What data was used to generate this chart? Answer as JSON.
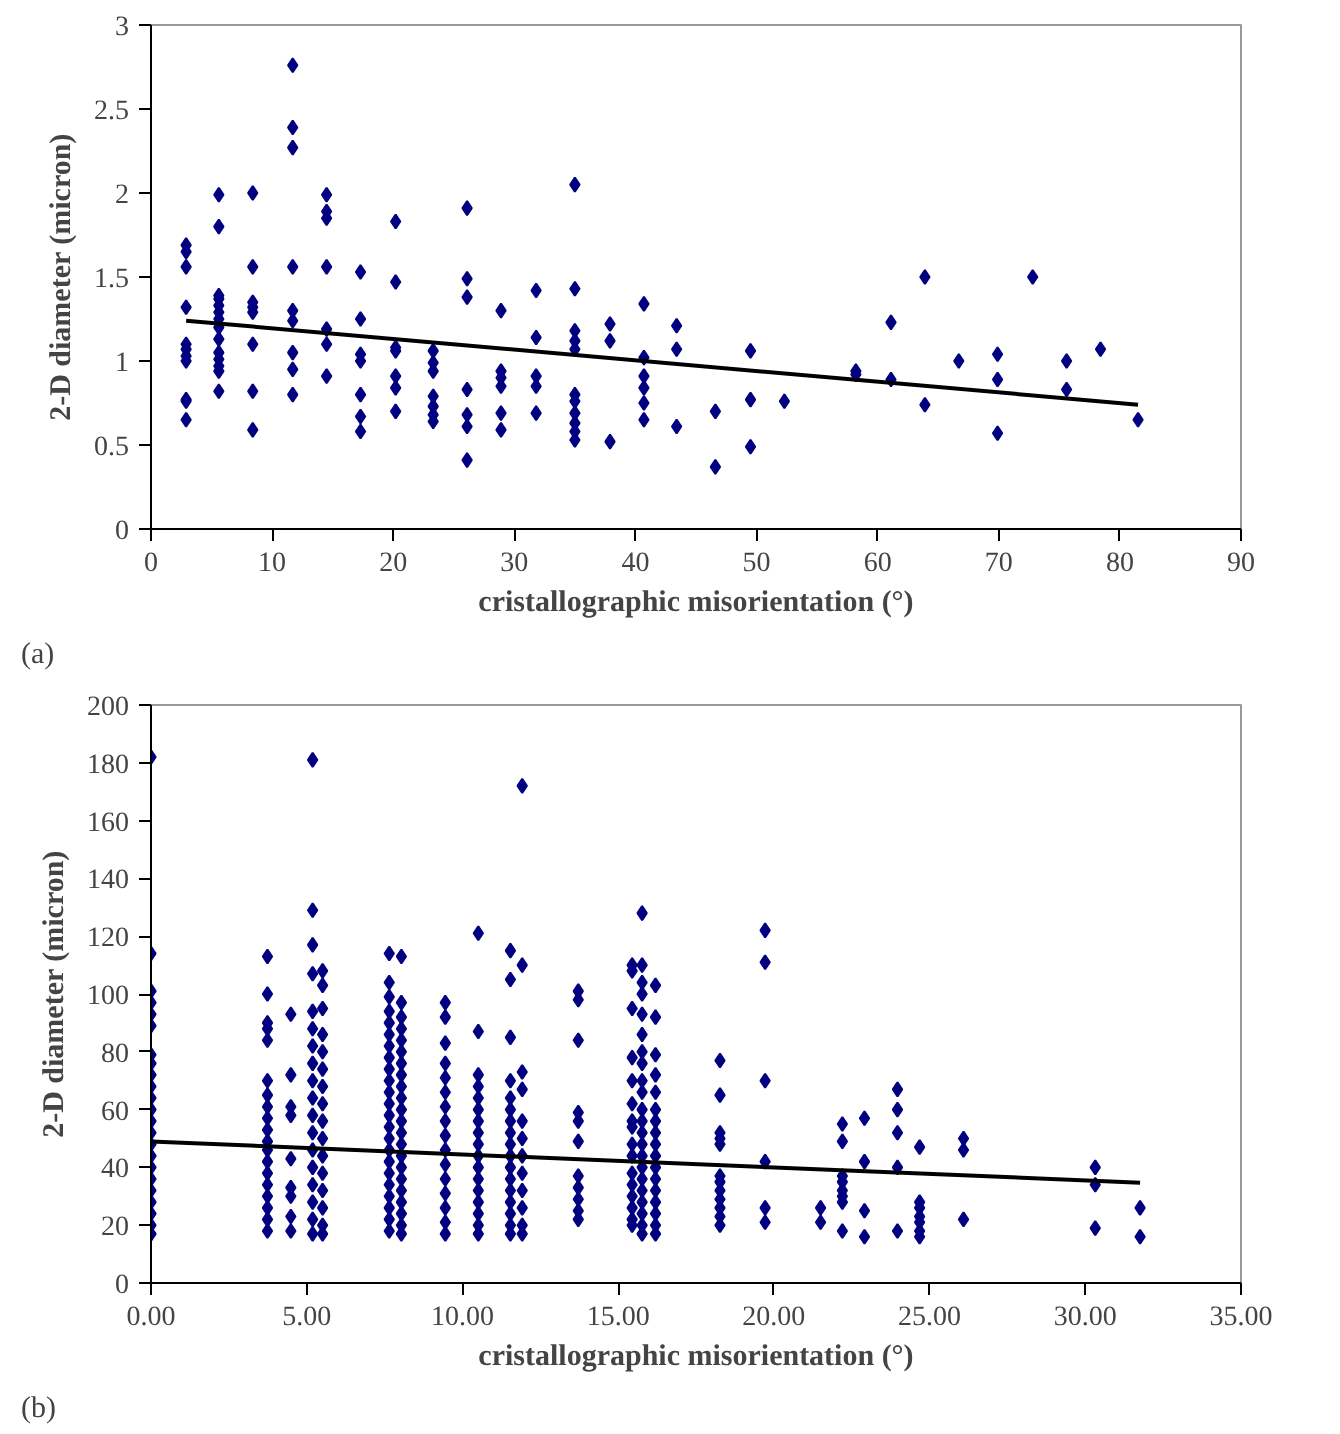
{
  "chart_data": [
    {
      "type": "scatter",
      "xlabel": "cristallographic misorientation (°)",
      "ylabel": "2-D diameter (micron)",
      "annotations": [
        "(a)"
      ],
      "xlim": [
        0,
        90
      ],
      "xticks": [
        0,
        10,
        20,
        30,
        40,
        50,
        60,
        70,
        80,
        90
      ],
      "ylim": [
        0,
        3
      ],
      "yticks": [
        0,
        0.5,
        1,
        1.5,
        2,
        2.5,
        3
      ],
      "series": [
        {
          "marker": "diamond",
          "color": "#000080",
          "x": [
            2.9,
            2.9,
            2.9,
            2.9,
            2.9,
            2.9,
            2.9,
            2.9,
            2.9,
            2.9,
            2.9,
            5.6,
            5.6,
            5.6,
            5.6,
            5.6,
            5.6,
            5.6,
            5.6,
            5.6,
            5.6,
            5.6,
            5.6,
            5.6,
            5.6,
            8.4,
            8.4,
            8.4,
            8.4,
            8.4,
            8.4,
            8.4,
            8.4,
            11.7,
            11.7,
            11.7,
            11.7,
            11.7,
            11.7,
            11.7,
            11.7,
            11.7,
            14.5,
            14.5,
            14.5,
            14.5,
            14.5,
            14.5,
            14.5,
            17.3,
            17.3,
            17.3,
            17.3,
            17.3,
            17.3,
            17.3,
            20.2,
            20.2,
            20.2,
            20.2,
            20.2,
            20.2,
            20.2,
            23.3,
            23.3,
            23.3,
            23.3,
            23.3,
            23.3,
            23.3,
            26.1,
            26.1,
            26.1,
            26.1,
            26.1,
            26.1,
            26.1,
            28.9,
            28.9,
            28.9,
            28.9,
            28.9,
            28.9,
            31.8,
            31.8,
            31.8,
            31.8,
            31.8,
            35,
            35,
            35,
            35,
            35,
            35,
            35,
            35,
            35,
            35,
            35,
            37.9,
            37.9,
            37.9,
            40.7,
            40.7,
            40.7,
            40.7,
            40.7,
            40.7,
            43.4,
            43.4,
            43.4,
            46.6,
            46.6,
            49.5,
            49.5,
            49.5,
            52.3,
            58.2,
            58.2,
            61.1,
            61.1,
            63.9,
            63.9,
            66.7,
            69.9,
            69.9,
            69.9,
            72.8,
            75.6,
            75.6,
            78.4,
            81.5
          ],
          "values": [
            1.69,
            1.65,
            1.56,
            1.32,
            1.1,
            1.07,
            1.03,
            1.0,
            0.77,
            0.76,
            0.65,
            1.99,
            1.8,
            1.39,
            1.37,
            1.33,
            1.29,
            1.25,
            1.2,
            1.13,
            1.05,
            1.01,
            0.97,
            0.94,
            0.82,
            2.0,
            1.56,
            1.35,
            1.32,
            1.29,
            1.1,
            0.82,
            0.59,
            2.76,
            2.39,
            2.27,
            1.56,
            1.3,
            1.24,
            1.05,
            0.95,
            0.8,
            1.99,
            1.89,
            1.85,
            1.56,
            1.19,
            1.1,
            0.91,
            1.53,
            1.25,
            1.04,
            1.0,
            0.8,
            0.67,
            0.58,
            1.83,
            1.47,
            1.08,
            1.06,
            0.91,
            0.84,
            0.7,
            1.06,
            0.99,
            0.94,
            0.79,
            0.73,
            0.68,
            0.64,
            1.91,
            1.49,
            1.38,
            0.83,
            0.68,
            0.61,
            0.41,
            1.3,
            0.94,
            0.9,
            0.85,
            0.69,
            0.59,
            1.42,
            1.14,
            0.91,
            0.85,
            0.69,
            2.05,
            1.43,
            1.18,
            1.12,
            1.07,
            0.8,
            0.76,
            0.69,
            0.63,
            0.58,
            0.53,
            1.22,
            1.12,
            0.52,
            1.34,
            1.02,
            0.91,
            0.84,
            0.75,
            0.65,
            1.21,
            1.07,
            0.61,
            0.7,
            0.37,
            1.06,
            0.77,
            0.49,
            0.76,
            0.94,
            0.92,
            1.23,
            0.89,
            1.5,
            0.74,
            1.0,
            1.04,
            0.89,
            0.57,
            1.5,
            1.0,
            0.83,
            1.07,
            0.65
          ]
        },
        {
          "type": "line",
          "color": "#000000",
          "line_style": "solid",
          "x": [
            2.9,
            81.5
          ],
          "values": [
            1.24,
            0.74
          ]
        }
      ]
    },
    {
      "type": "scatter",
      "xlabel": "cristallographic misorientation (°)",
      "ylabel": "2-D diameter (micron)",
      "annotations": [
        "(b)"
      ],
      "xlim": [
        0,
        35
      ],
      "xticks": [
        {
          "value": 0,
          "label": "0.00"
        },
        {
          "value": 5,
          "label": "5.00"
        },
        {
          "value": 10,
          "label": "10.00"
        },
        {
          "value": 15,
          "label": "15.00"
        },
        {
          "value": 20,
          "label": "20.00"
        },
        {
          "value": 25,
          "label": "25.00"
        },
        {
          "value": 30,
          "label": "30.00"
        },
        {
          "value": 35,
          "label": "35.00"
        }
      ],
      "ylim": [
        0,
        200
      ],
      "yticks": [
        0,
        20,
        40,
        60,
        80,
        100,
        120,
        140,
        160,
        180,
        200
      ],
      "series": [
        {
          "marker": "diamond",
          "color": "#000080",
          "x": [
            0,
            0,
            0,
            0,
            0,
            0,
            0,
            0,
            0,
            0,
            0,
            0,
            0,
            0,
            0,
            0,
            0,
            0,
            0,
            0,
            0,
            0,
            0,
            3.74,
            3.74,
            3.74,
            3.74,
            3.74,
            3.74,
            3.74,
            3.74,
            3.74,
            3.74,
            3.74,
            3.74,
            3.74,
            3.74,
            3.74,
            3.74,
            3.74,
            3.74,
            3.74,
            4.49,
            4.49,
            4.49,
            4.49,
            4.49,
            4.49,
            4.49,
            4.49,
            4.49,
            5.19,
            5.19,
            5.19,
            5.19,
            5.19,
            5.19,
            5.19,
            5.19,
            5.19,
            5.19,
            5.19,
            5.19,
            5.19,
            5.19,
            5.19,
            5.19,
            5.19,
            5.19,
            5.51,
            5.51,
            5.51,
            5.51,
            5.51,
            5.51,
            5.51,
            5.51,
            5.51,
            5.51,
            5.51,
            5.51,
            5.51,
            5.51,
            5.51,
            5.51,
            7.65,
            7.65,
            7.65,
            7.65,
            7.65,
            7.65,
            7.65,
            7.65,
            7.65,
            7.65,
            7.65,
            7.65,
            7.65,
            7.65,
            7.65,
            7.65,
            7.65,
            7.65,
            7.65,
            7.65,
            7.65,
            7.65,
            7.65,
            8.04,
            8.04,
            8.04,
            8.04,
            8.04,
            8.04,
            8.04,
            8.04,
            8.04,
            8.04,
            8.04,
            8.04,
            8.04,
            8.04,
            8.04,
            8.04,
            8.04,
            8.04,
            8.04,
            8.04,
            8.04,
            8.04,
            9.45,
            9.45,
            9.45,
            9.45,
            9.45,
            9.45,
            9.45,
            9.45,
            9.45,
            9.45,
            9.45,
            9.45,
            9.45,
            9.45,
            9.45,
            9.45,
            10.51,
            10.51,
            10.51,
            10.51,
            10.51,
            10.51,
            10.51,
            10.51,
            10.51,
            10.51,
            10.51,
            10.51,
            10.51,
            10.51,
            10.51,
            10.51,
            10.51,
            11.54,
            11.54,
            11.54,
            11.54,
            11.54,
            11.54,
            11.54,
            11.54,
            11.54,
            11.54,
            11.54,
            11.54,
            11.54,
            11.54,
            11.54,
            11.54,
            11.54,
            11.92,
            11.92,
            11.92,
            11.92,
            11.92,
            11.92,
            11.92,
            11.92,
            11.92,
            11.92,
            11.92,
            11.92,
            13.72,
            13.72,
            13.72,
            13.72,
            13.72,
            13.72,
            13.72,
            13.72,
            13.72,
            13.72,
            13.72,
            15.45,
            15.45,
            15.45,
            15.45,
            15.45,
            15.45,
            15.45,
            15.45,
            15.45,
            15.45,
            15.45,
            15.45,
            15.45,
            15.45,
            15.45,
            15.45,
            15.77,
            15.77,
            15.77,
            15.77,
            15.77,
            15.77,
            15.77,
            15.77,
            15.77,
            15.77,
            15.77,
            15.77,
            15.77,
            15.77,
            15.77,
            15.77,
            15.77,
            15.77,
            15.77,
            15.77,
            15.77,
            15.77,
            16.2,
            16.2,
            16.2,
            16.2,
            16.2,
            16.2,
            16.2,
            16.2,
            16.2,
            16.2,
            16.2,
            16.2,
            16.2,
            16.2,
            16.2,
            16.2,
            16.2,
            18.27,
            18.27,
            18.27,
            18.27,
            18.27,
            18.27,
            18.27,
            18.27,
            18.27,
            18.27,
            18.27,
            18.27,
            19.72,
            19.72,
            19.72,
            19.72,
            19.72,
            19.72,
            21.5,
            21.5,
            22.2,
            22.2,
            22.2,
            22.2,
            22.2,
            22.2,
            22.2,
            22.2,
            22.91,
            22.91,
            22.91,
            22.91,
            23.97,
            23.97,
            23.97,
            23.97,
            23.97,
            24.68,
            24.68,
            24.68,
            24.68,
            24.68,
            24.68,
            24.68,
            26.09,
            26.09,
            26.09,
            30.32,
            30.32,
            30.32,
            31.76,
            31.76
          ],
          "values": [
            182,
            114,
            101,
            97,
            93,
            89,
            79,
            76,
            72,
            68,
            64,
            60,
            56,
            52,
            48,
            44,
            40,
            36,
            32,
            28,
            24,
            20,
            17,
            113,
            100,
            90,
            88,
            84,
            70,
            65,
            61,
            57,
            53,
            49,
            46,
            42,
            38,
            34,
            30,
            26,
            22,
            18,
            93,
            72,
            61,
            58,
            43,
            33,
            30,
            23,
            18,
            181,
            129,
            117,
            107,
            94,
            88,
            82,
            76,
            70,
            64,
            58,
            52,
            46,
            40,
            34,
            28,
            22,
            17,
            108,
            103,
            95,
            86,
            80,
            74,
            68,
            62,
            56,
            50,
            44,
            38,
            32,
            26,
            20,
            17,
            114,
            104,
            99,
            94,
            90,
            86,
            82,
            78,
            74,
            70,
            66,
            62,
            58,
            54,
            50,
            46,
            42,
            38,
            34,
            30,
            26,
            22,
            18,
            113,
            97,
            92,
            88,
            84,
            80,
            76,
            72,
            68,
            64,
            60,
            56,
            52,
            48,
            44,
            40,
            36,
            32,
            28,
            24,
            20,
            17,
            97,
            92,
            83,
            76,
            71,
            66,
            61,
            56,
            51,
            46,
            41,
            36,
            31,
            26,
            21,
            17,
            121,
            87,
            72,
            68,
            64,
            60,
            56,
            52,
            48,
            44,
            40,
            36,
            32,
            28,
            24,
            20,
            17,
            115,
            105,
            85,
            70,
            64,
            60,
            56,
            52,
            48,
            44,
            40,
            36,
            32,
            28,
            24,
            20,
            17,
            172,
            110,
            73,
            67,
            56,
            50,
            44,
            38,
            32,
            26,
            20,
            17,
            101,
            98,
            84,
            59,
            56,
            49,
            37,
            33,
            29,
            25,
            22,
            110,
            108,
            95,
            78,
            70,
            62,
            56,
            54,
            48,
            44,
            38,
            34,
            30,
            26,
            22,
            20,
            128,
            110,
            104,
            100,
            93,
            86,
            80,
            76,
            70,
            66,
            60,
            56,
            52,
            48,
            44,
            40,
            36,
            32,
            28,
            24,
            20,
            17,
            103,
            92,
            79,
            72,
            66,
            60,
            56,
            52,
            48,
            44,
            40,
            36,
            32,
            28,
            24,
            20,
            17,
            77,
            65,
            52,
            50,
            48,
            37,
            35,
            32,
            29,
            26,
            23,
            20,
            122,
            111,
            70,
            42,
            26,
            21,
            26,
            21,
            55,
            49,
            37,
            35,
            32,
            30,
            28,
            18,
            57,
            42,
            25,
            16,
            67,
            60,
            52,
            40,
            18,
            47,
            28,
            26,
            23,
            21,
            18,
            16,
            50,
            46,
            22,
            40,
            34,
            19,
            26,
            16
          ]
        },
        {
          "type": "line",
          "color": "#000000",
          "line_style": "solid",
          "x": [
            0,
            31.76
          ],
          "values": [
            49,
            34.7
          ]
        }
      ]
    }
  ]
}
